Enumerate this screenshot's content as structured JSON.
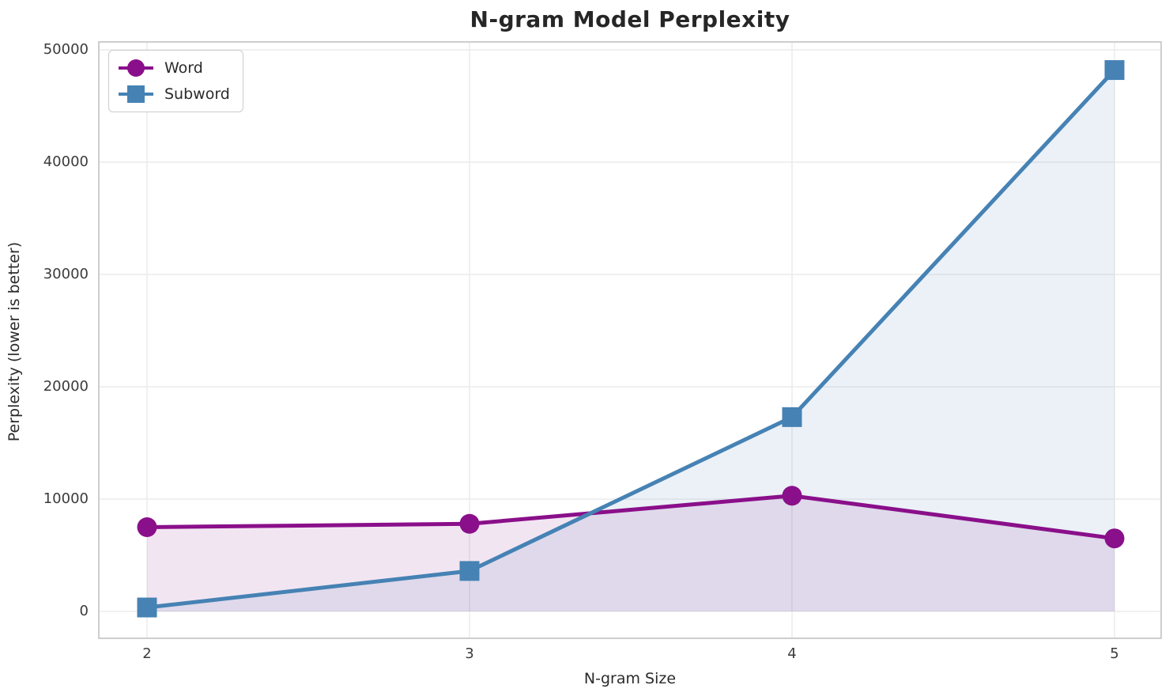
{
  "chart_data": {
    "type": "line",
    "title": "N-gram Model Perplexity",
    "xlabel": "N-gram Size",
    "ylabel": "Perplexity (lower is better)",
    "x": [
      2,
      3,
      4,
      5
    ],
    "xticks": [
      2,
      3,
      4,
      5
    ],
    "yticks": [
      0,
      10000,
      20000,
      30000,
      40000,
      50000
    ],
    "ylim": [
      0,
      50000
    ],
    "grid": true,
    "legend_position": "upper left",
    "series": [
      {
        "name": "Word",
        "marker": "circle",
        "color": "#8a0f8a",
        "fill_below": true,
        "values": [
          7500,
          7800,
          10300,
          6500
        ]
      },
      {
        "name": "Subword",
        "marker": "square",
        "color": "#4682b4",
        "fill_below": true,
        "values": [
          350,
          3600,
          17300,
          48200
        ]
      }
    ],
    "style": {
      "grid_color": "#ececec",
      "spine_color": "#c9c9c9",
      "fill_opacity": 0.11,
      "line_width": 5,
      "marker_size": 25,
      "text_color": "#2b2b2b"
    }
  }
}
